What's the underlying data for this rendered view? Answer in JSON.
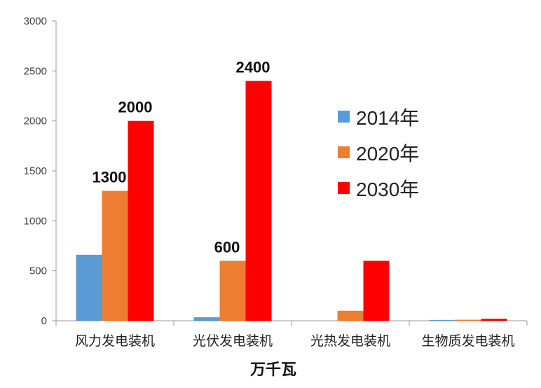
{
  "chart_data": {
    "type": "bar",
    "categories": [
      "风力发电装机",
      "光伏发电装机",
      "光热发电装机",
      "生物质发电装机"
    ],
    "series": [
      {
        "name": "2014年",
        "color": "#5B9BD5",
        "values": [
          660,
          35,
          0,
          8
        ]
      },
      {
        "name": "2020年",
        "color": "#ED7D31",
        "values": [
          1300,
          600,
          100,
          10
        ]
      },
      {
        "name": "2030年",
        "color": "#FF0000",
        "values": [
          2000,
          2400,
          600,
          20
        ]
      }
    ],
    "data_labels": [
      {
        "series": 1,
        "category": 0,
        "text": "1300"
      },
      {
        "series": 2,
        "category": 0,
        "text": "2000"
      },
      {
        "series": 1,
        "category": 1,
        "text": "600"
      },
      {
        "series": 2,
        "category": 1,
        "text": "2400"
      }
    ],
    "yticks": [
      "0",
      "500",
      "1000",
      "1500",
      "2000",
      "2500",
      "3000"
    ],
    "ylim": [
      0,
      3000
    ],
    "xlabel": "万千瓦",
    "ylabel": "",
    "title": "",
    "legend_position": "right",
    "grid": false
  }
}
